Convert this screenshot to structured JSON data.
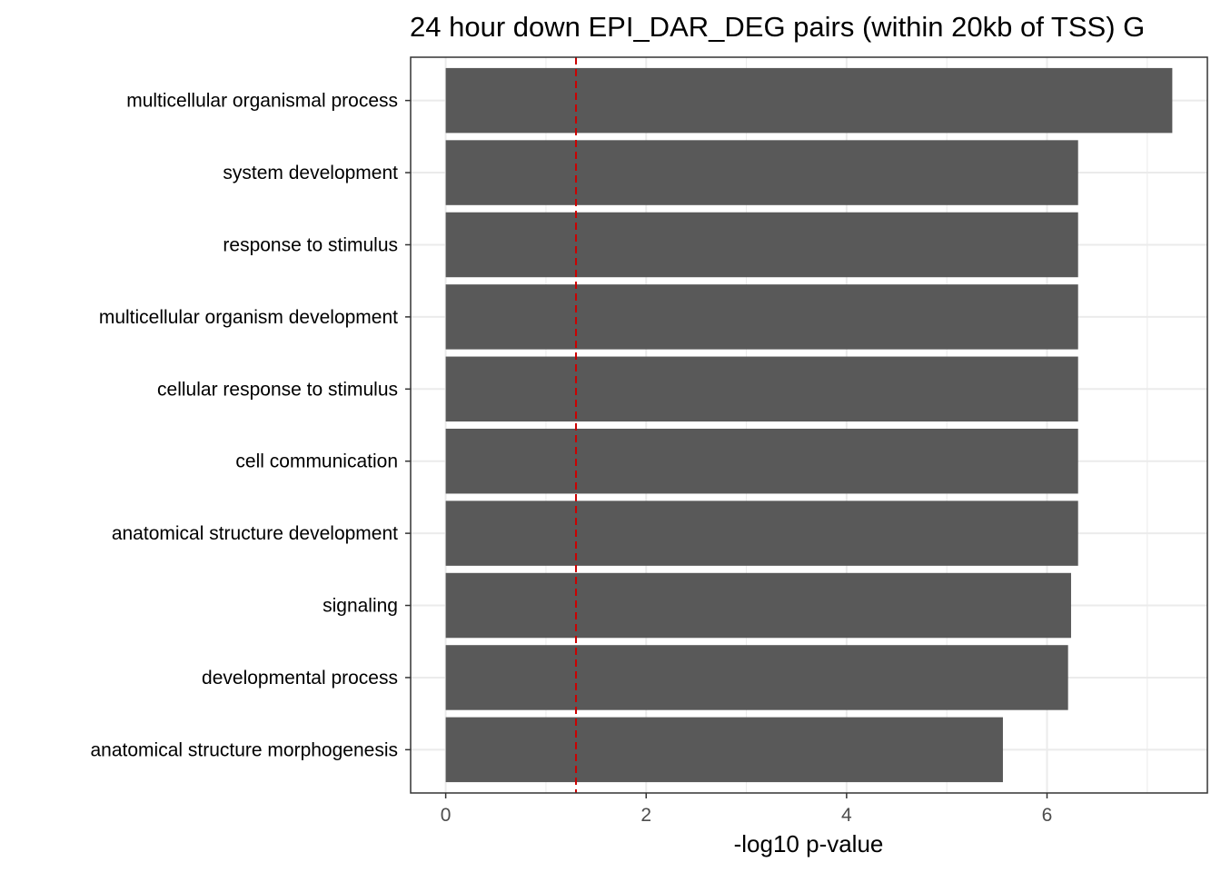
{
  "chart_data": {
    "type": "bar",
    "orientation": "horizontal",
    "title": "24 hour down EPI_DAR_DEG pairs (within 20kb of TSS) G",
    "xlabel": "-log10 p-value",
    "ylabel": "",
    "categories": [
      "multicellular organismal process",
      "system development",
      "response to stimulus",
      "multicellular organism development",
      "cellular response to stimulus",
      "cell communication",
      "anatomical structure development",
      "signaling",
      "developmental process",
      "anatomical structure morphogenesis"
    ],
    "values": [
      7.25,
      6.31,
      6.31,
      6.31,
      6.31,
      6.31,
      6.31,
      6.24,
      6.21,
      5.56
    ],
    "xlim": [
      -0.35,
      7.6
    ],
    "xticks": [
      0,
      2,
      4,
      6
    ],
    "threshold": 1.3,
    "grid": true,
    "legend": "none",
    "colors": {
      "bar": "#595959",
      "threshold": "#cc0000",
      "grid": "#ebebeb",
      "panel_border": "#333333"
    }
  }
}
